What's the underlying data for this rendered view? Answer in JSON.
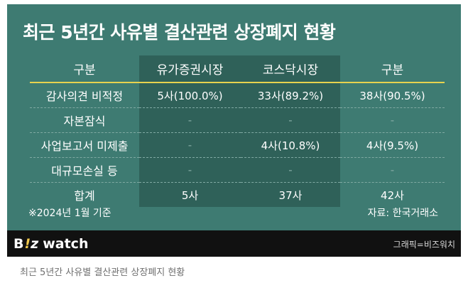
{
  "title": "최근 5년간 사유별 결산관련 상장폐지 현황",
  "chart_data": {
    "type": "table",
    "columns": [
      "구분",
      "유가증권시장",
      "코스닥시장",
      "구분"
    ],
    "rows": [
      {
        "label": "감사의견 비적정",
        "cells": [
          "5사(100.0%)",
          "33사(89.2%)",
          "38사(90.5%)"
        ]
      },
      {
        "label": "자본잠식",
        "cells": [
          "-",
          "-",
          "-"
        ]
      },
      {
        "label": "사업보고서 미제출",
        "cells": [
          "-",
          "4사(10.8%)",
          "4사(9.5%)"
        ]
      },
      {
        "label": "대규모손실 등",
        "cells": [
          "-",
          "-",
          "-"
        ]
      },
      {
        "label": "합계",
        "cells": [
          "5사",
          "37사",
          "42사"
        ]
      }
    ],
    "values": {
      "유가증권시장": [
        5,
        0,
        0,
        0,
        5
      ],
      "코스닥시장": [
        33,
        0,
        4,
        0,
        37
      ],
      "합계": [
        38,
        0,
        4,
        0,
        42
      ]
    }
  },
  "footnote": "※2024년 1월 기준",
  "source": "자료: 한국거래소",
  "brand": {
    "b": "B",
    "bang": "!",
    "z": "z",
    "watch": "watch"
  },
  "credit": "그래픽=비즈워치",
  "caption": "최근 5년간 사유별 결산관련 상장폐지 현황",
  "colors": {
    "panel": "#3e7b72",
    "highlight_column": "#2f6159",
    "header_rule": "#e6d24e",
    "brand_bar": "#111111",
    "logo_accent": "#f2c94c"
  }
}
